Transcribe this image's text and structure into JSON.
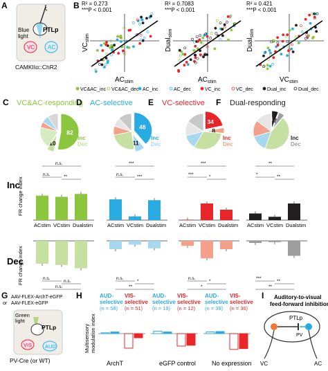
{
  "colors": {
    "green": "#8cc63f",
    "light_green": "#c5e0a0",
    "blue": "#29abe2",
    "light_blue": "#a8d8f0",
    "red": "#e8262a",
    "light_red": "#f4a08a",
    "black": "#231f20",
    "gray": "#9d9d9d"
  },
  "panel_a": {
    "label": "A",
    "opto_symbol": "ξ",
    "region_ptlp": "PTLp",
    "blue_light": "Blue\nlight",
    "vc": "VC",
    "ac": "AC",
    "caption": "CAMKIIα::ChR2"
  },
  "panel_b": {
    "label": "B",
    "plots": [
      {
        "r2": "R² = 0.273",
        "p": "***P < 0.001",
        "ylabel": "VCstim",
        "ylabel_main": "VC",
        "ylabel_sub": "stim",
        "xlabel_main": "AC",
        "xlabel_sub": "stim"
      },
      {
        "r2": "R² = 0.7083",
        "p": "***P < 0.001",
        "ylabel_main": "Dual",
        "ylabel_sub": "stim",
        "xlabel_main": "AC",
        "xlabel_sub": "stim"
      },
      {
        "r2": "R² = 0.421",
        "p": "***P < 0.001",
        "ylabel_main": "Dual",
        "ylabel_sub": "stim",
        "xlabel_main": "VC",
        "xlabel_sub": "stim"
      }
    ],
    "legend": [
      {
        "label": "VC&AC_inc",
        "marker": "filled",
        "color": "#8cc63f"
      },
      {
        "label": "VC&AC_dec",
        "marker": "open",
        "color": "#8cc63f"
      },
      {
        "label": "AC_inc",
        "marker": "filled",
        "color": "#29abe2"
      },
      {
        "label": "AC_dec",
        "marker": "open",
        "color": "#29abe2"
      },
      {
        "label": "VC_inc",
        "marker": "filled",
        "color": "#e8262a"
      },
      {
        "label": "VC_dec",
        "marker": "open",
        "color": "#e8262a"
      },
      {
        "label": "Dual_inc",
        "marker": "filled",
        "color": "#231f20"
      },
      {
        "label": "Dual_dec",
        "marker": "open",
        "color": "#231f20"
      }
    ]
  },
  "row_labels": {
    "inc": "Inc",
    "dec": "Dec",
    "ylabel": "FR change index"
  },
  "categories": [
    "ACstim",
    "VCstim",
    "Dualstim"
  ],
  "chart_data": [
    {
      "type": "pie",
      "panel": "C",
      "title": "VC&AC-responding",
      "values": [
        82,
        10,
        30,
        8,
        10,
        15
      ],
      "labels": [
        "82",
        "10",
        "",
        "",
        "",
        ""
      ],
      "inc_label": "Inc",
      "dec_label": "Dec"
    },
    {
      "type": "pie",
      "panel": "D",
      "title": "AC-selective",
      "values": [
        48,
        11,
        30,
        10,
        10,
        15
      ],
      "labels": [
        "48",
        "11",
        "",
        "",
        "",
        ""
      ],
      "inc_label": "Inc",
      "dec_label": "Dec"
    },
    {
      "type": "pie",
      "panel": "E",
      "title": "VC-selective",
      "values": [
        34,
        8,
        50,
        20,
        20,
        25
      ],
      "labels": [
        "34",
        "8",
        "",
        "",
        "",
        ""
      ],
      "inc_label": "Inc",
      "dec_label": "Dec"
    },
    {
      "type": "pie",
      "panel": "F",
      "title": "Dual-responding",
      "values": [
        8,
        7,
        60,
        20,
        20,
        20
      ],
      "labels": [
        "8",
        "7",
        "",
        "",
        "",
        ""
      ],
      "inc_label": "Inc",
      "dec_label": "Dec"
    },
    {
      "type": "bar",
      "panel": "C",
      "row": "Inc",
      "categories": [
        "ACstim",
        "VCstim",
        "Dualstim"
      ],
      "values": [
        0.59,
        0.56,
        0.63
      ],
      "ylim": [
        0,
        1
      ],
      "sig": [
        "n.s.",
        "**",
        "n.s."
      ]
    },
    {
      "type": "bar",
      "panel": "D",
      "row": "Inc",
      "categories": [
        "ACstim",
        "VCstim",
        "Dualstim"
      ],
      "values": [
        0.5,
        0.09,
        0.48
      ],
      "ylim": [
        0,
        1
      ],
      "sig": [
        "***",
        "***",
        "n.s."
      ]
    },
    {
      "type": "bar",
      "panel": "E",
      "row": "Inc",
      "categories": [
        "ACstim",
        "VCstim",
        "Dualstim"
      ],
      "values": [
        0.01,
        0.4,
        0.25
      ],
      "ylim": [
        0,
        1
      ],
      "sig": [
        "***",
        "*",
        "***"
      ]
    },
    {
      "type": "bar",
      "panel": "F",
      "row": "Inc",
      "categories": [
        "ACstim",
        "VCstim",
        "Dualstim"
      ],
      "values": [
        0.16,
        0.08,
        0.4
      ],
      "ylim": [
        0,
        1
      ],
      "sig": [
        "**",
        "**",
        "*"
      ]
    },
    {
      "type": "bar",
      "panel": "C",
      "row": "Dec",
      "categories": [
        "ACstim",
        "VCstim",
        "Dualstim"
      ],
      "values": [
        -0.55,
        -0.58,
        -0.66
      ],
      "ylim": [
        -1,
        0
      ],
      "sig": [
        "n.s.",
        "n.s.",
        "n.s."
      ]
    },
    {
      "type": "bar",
      "panel": "D",
      "row": "Dec",
      "categories": [
        "ACstim",
        "VCstim",
        "Dualstim"
      ],
      "values": [
        -0.2,
        -0.09,
        -0.18
      ],
      "ylim": [
        -1,
        0
      ],
      "sig": [
        "**",
        "*",
        "n.s."
      ]
    },
    {
      "type": "bar",
      "panel": "E",
      "row": "Dec",
      "categories": [
        "ACstim",
        "VCstim",
        "Dualstim"
      ],
      "values": [
        -0.12,
        -0.42,
        -0.2
      ],
      "ylim": [
        -1,
        0
      ],
      "sig": [
        "*",
        "*",
        "n.s."
      ]
    },
    {
      "type": "bar",
      "panel": "F",
      "row": "Dec",
      "categories": [
        "ACstim",
        "VCstim",
        "Dualstim"
      ],
      "values": [
        -0.05,
        -0.03,
        -0.36
      ],
      "ylim": [
        -1,
        0
      ],
      "sig": [
        "**",
        "**",
        "***"
      ]
    }
  ],
  "panels": {
    "C": {
      "label": "C",
      "title": "VC&AC-responding",
      "title_color": "#8cc63f"
    },
    "D": {
      "label": "D",
      "title": "AC-selective",
      "title_color": "#29abe2"
    },
    "E": {
      "label": "E",
      "title": "VC-selective",
      "title_color": "#e8262a"
    },
    "F": {
      "label": "F",
      "title": "Dual-responding",
      "title_color": "#231f20"
    }
  },
  "panel_g": {
    "label": "G",
    "line1": "AAV-FLEX-ArchT-eGFP",
    "line2": "AAV-FLEX-eGFP",
    "or": "or",
    "green_light": "Green\nlight",
    "ptlp": "PTLp",
    "vis": "VIS",
    "aud": "AUD",
    "caption": "PV-Cre (or WT)"
  },
  "panel_h": {
    "label": "H",
    "ylabel": "Multisensory\nmodulation index",
    "groups": [
      {
        "name": "ArchT",
        "aud": "AUD-\nselective",
        "aud_n": "(n = 58)",
        "vis": "VIS-\nselective",
        "vis_n": "(n = 51)"
      },
      {
        "name": "eGFP control",
        "aud": "AUD-\nselective",
        "aud_n": "(n = 19)",
        "vis": "VIS-\nselective",
        "vis_n": "(n = 12)"
      },
      {
        "name": "No expression",
        "aud": "AUD-\nselective",
        "aud_n": "(n = 39)",
        "vis": "VIS-\nselective",
        "vis_n": "(n = 36)"
      }
    ],
    "values": [
      {
        "aud": [
          0.02,
          0.04
        ],
        "vis": [
          -0.35,
          -0.1
        ]
      },
      {
        "aud": [
          0.06,
          0.04
        ],
        "vis": [
          -0.3,
          -0.28
        ]
      },
      {
        "aud": [
          0.04,
          0.05
        ],
        "vis": [
          -0.38,
          -0.36
        ]
      }
    ]
  },
  "panel_i": {
    "label": "I",
    "title": "Auditory-to-visual\nfeed-forward inhibition",
    "ptlp": "PTLp",
    "pv": "PV",
    "vc": "VC",
    "ac": "AC"
  }
}
